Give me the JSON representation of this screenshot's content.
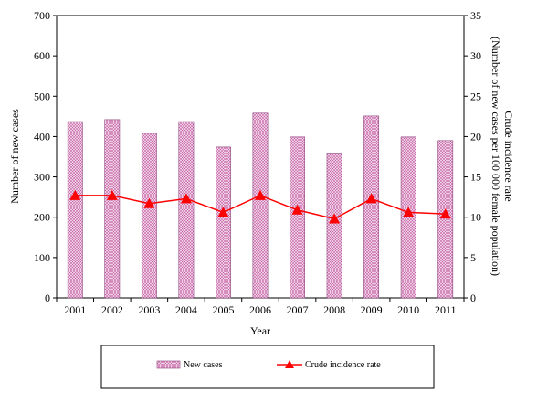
{
  "chart_data": {
    "type": "bar",
    "categories": [
      "2001",
      "2002",
      "2003",
      "2004",
      "2005",
      "2006",
      "2007",
      "2008",
      "2009",
      "2010",
      "2011"
    ],
    "series": [
      {
        "name": "New cases",
        "type": "bar",
        "axis": "left",
        "values": [
          437,
          442,
          408,
          437,
          374,
          458,
          399,
          359,
          451,
          399,
          390
        ],
        "color": "#e6b8d8",
        "pattern": "crosshatch"
      },
      {
        "name": "Crude incidence rate",
        "type": "line",
        "axis": "right",
        "values": [
          12.7,
          12.7,
          11.7,
          12.3,
          10.6,
          12.7,
          10.9,
          9.8,
          12.3,
          10.6,
          10.4
        ],
        "color": "#ff0000",
        "marker": "triangle"
      }
    ],
    "xlabel": "Year",
    "ylabel_left": "Number of new cases",
    "ylabel_right_line1": "Crude incidence rate",
    "ylabel_right_line2": "(Number of new cases per 100 000 female population)",
    "ylim_left": [
      0,
      700
    ],
    "ylim_right": [
      0,
      35
    ],
    "yticks_left": [
      "0",
      "100",
      "200",
      "300",
      "400",
      "500",
      "600",
      "700"
    ],
    "yticks_right": [
      "0",
      "5",
      "10",
      "15",
      "20",
      "25",
      "30",
      "35"
    ],
    "grid": false,
    "legend_position": "bottom"
  }
}
